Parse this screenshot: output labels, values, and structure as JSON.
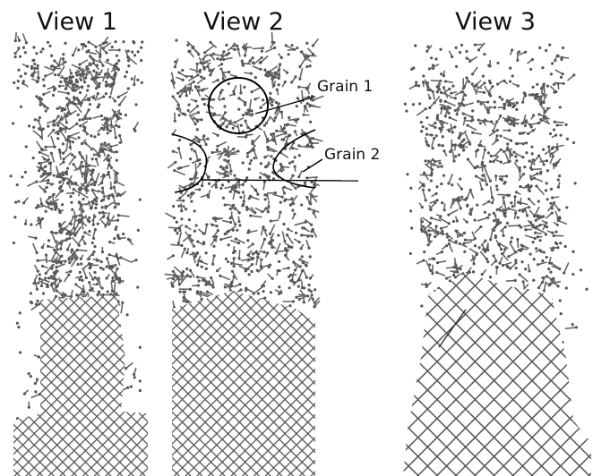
{
  "views": [
    "View 1",
    "View 2",
    "View 3"
  ],
  "annotations": [
    "Grain 1",
    "Grain 2"
  ]
}
